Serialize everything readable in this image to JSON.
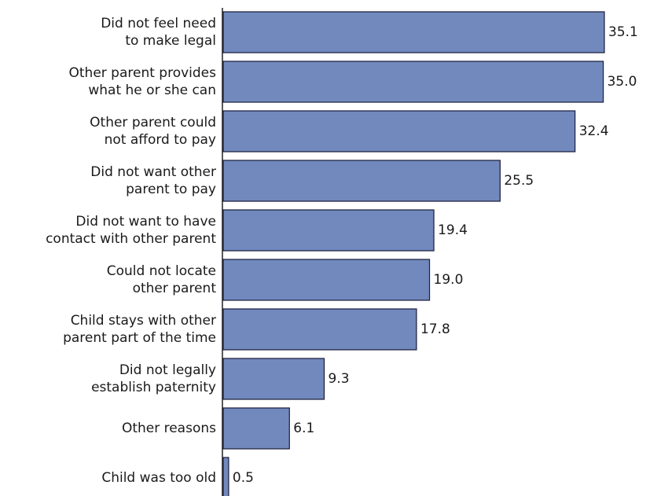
{
  "chart_data": {
    "type": "bar",
    "orientation": "horizontal",
    "categories": [
      "Did not feel need\nto make legal",
      "Other parent provides\nwhat he or she can",
      "Other parent could\nnot afford to pay",
      "Did not want other\nparent to pay",
      "Did not want to have\ncontact with other parent",
      "Could not locate\nother parent",
      "Child stays with other\nparent part of the time",
      "Did not legally\nestablish paternity",
      "Other reasons",
      "Child was too old"
    ],
    "values": [
      35.1,
      35.0,
      32.4,
      25.5,
      19.4,
      19.0,
      17.8,
      9.3,
      6.1,
      0.5
    ],
    "value_labels": [
      "35.1",
      "35.0",
      "32.4",
      "25.5",
      "19.4",
      "19.0",
      "17.8",
      "9.3",
      "6.1",
      "0.5"
    ],
    "color": "#7189bd",
    "xlim": [
      0,
      35.1
    ]
  }
}
